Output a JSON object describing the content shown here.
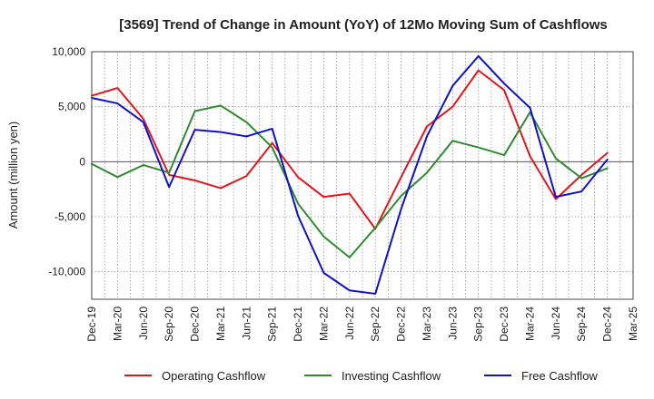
{
  "chart_data": {
    "type": "line",
    "title": "[3569]  Trend of Change in Amount (YoY) of 12Mo Moving Sum of Cashflows",
    "xlabel": "",
    "ylabel": "Amount (million yen)",
    "ylim": [
      -12500,
      10000
    ],
    "yticks": [
      10000,
      5000,
      0,
      -5000,
      -10000
    ],
    "ytick_labels": [
      "10,000",
      "5,000",
      "0",
      "-5,000",
      "-10,000"
    ],
    "categories": [
      "Dec-19",
      "Mar-20",
      "Jun-20",
      "Sep-20",
      "Dec-20",
      "Mar-21",
      "Jun-21",
      "Sep-21",
      "Dec-21",
      "Mar-22",
      "Jun-22",
      "Sep-22",
      "Dec-22",
      "Mar-23",
      "Jun-23",
      "Sep-23",
      "Dec-23",
      "Mar-24",
      "Jun-24",
      "Sep-24",
      "Dec-24",
      "Mar-25"
    ],
    "grid": true,
    "legend_position": "bottom",
    "series": [
      {
        "name": "Operating Cashflow",
        "color": "#e8141b",
        "values": [
          6000,
          6700,
          3900,
          -1200,
          -1700,
          -2400,
          -1300,
          1700,
          -1400,
          -3200,
          -2900,
          -6100,
          -1400,
          3200,
          5000,
          8300,
          6500,
          500,
          -3400,
          -1200,
          800,
          null
        ]
      },
      {
        "name": "Investing Cashflow",
        "color": "#2e8b2e",
        "values": [
          -200,
          -1400,
          -300,
          -1000,
          4600,
          5100,
          3600,
          1300,
          -3800,
          -6800,
          -8700,
          -6000,
          -3100,
          -1000,
          1900,
          1300,
          600,
          4500,
          300,
          -1500,
          -600,
          null
        ]
      },
      {
        "name": "Free Cashflow",
        "color": "#1010d0",
        "values": [
          5800,
          5300,
          3600,
          -2300,
          2900,
          2700,
          2300,
          3000,
          -4900,
          -10100,
          -11700,
          -12000,
          -4300,
          2300,
          6900,
          9600,
          7100,
          4900,
          -3200,
          -2700,
          200,
          null
        ]
      }
    ]
  }
}
